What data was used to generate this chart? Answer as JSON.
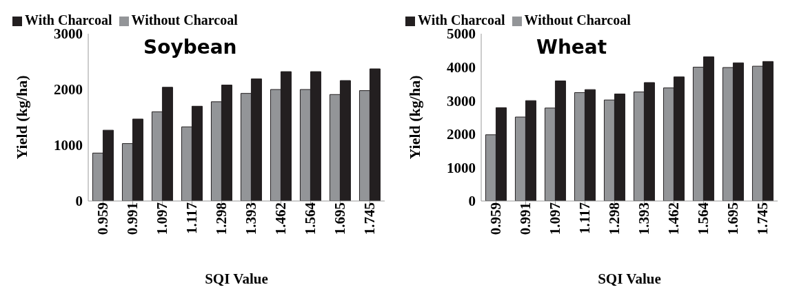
{
  "chart_data": [
    {
      "type": "bar",
      "title": "Soybean",
      "xlabel": "SQI Value",
      "ylabel": "Yield (kg/ha)",
      "categories": [
        "0.959",
        "0.991",
        "1.097",
        "1.117",
        "1.298",
        "1.393",
        "1.462",
        "1.564",
        "1.695",
        "1.745"
      ],
      "series": [
        {
          "name": "Without Charcoal",
          "color": "#939598",
          "values": [
            860,
            1030,
            1600,
            1330,
            1780,
            1930,
            2000,
            2000,
            1910,
            1980
          ]
        },
        {
          "name": "With Charcoal",
          "color": "#231f20",
          "values": [
            1270,
            1470,
            2040,
            1700,
            2080,
            2190,
            2320,
            2320,
            2160,
            2370
          ]
        }
      ],
      "ylim": [
        0,
        3000
      ],
      "yticks": [
        0,
        1000,
        2000,
        3000
      ],
      "grid": false,
      "legend": "top left"
    },
    {
      "type": "bar",
      "title": "Wheat",
      "xlabel": "SQI Value",
      "ylabel": "Yield (kg/ha)",
      "categories": [
        "0.959",
        "0.991",
        "1.097",
        "1.117",
        "1.298",
        "1.393",
        "1.462",
        "1.564",
        "1.695",
        "1.745"
      ],
      "series": [
        {
          "name": "Without Charcoal",
          "color": "#939598",
          "values": [
            1980,
            2510,
            2780,
            3240,
            3020,
            3260,
            3380,
            4000,
            3990,
            4030
          ]
        },
        {
          "name": "With Charcoal",
          "color": "#231f20",
          "values": [
            2790,
            3000,
            3590,
            3330,
            3200,
            3540,
            3710,
            4310,
            4130,
            4170
          ]
        }
      ],
      "ylim": [
        0,
        5000
      ],
      "yticks": [
        0,
        1000,
        2000,
        3000,
        4000,
        5000
      ],
      "grid": false,
      "legend": "top left"
    }
  ]
}
